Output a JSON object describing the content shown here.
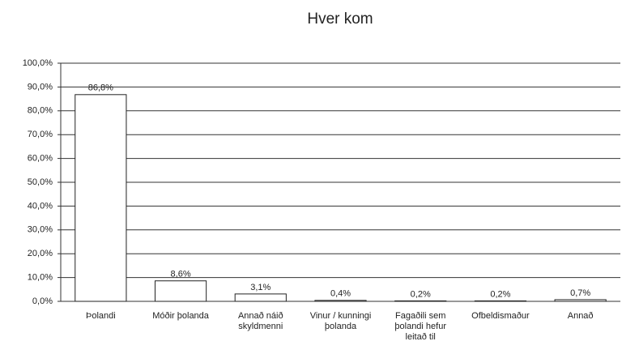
{
  "chart_data": {
    "type": "bar",
    "title": "Hver kom",
    "categories": [
      "Þolandi",
      "Móðir þolanda",
      "Annað náið skyldmenni",
      "Vinur / kunningi þolanda",
      "Fagaðili sem þolandi hefur leitað til",
      "Ofbeldismaður",
      "Annað"
    ],
    "values": [
      86.8,
      8.6,
      3.1,
      0.4,
      0.2,
      0.2,
      0.7
    ],
    "value_labels": [
      "86,8%",
      "8,6%",
      "3,1%",
      "0,4%",
      "0,2%",
      "0,2%",
      "0,7%"
    ],
    "color": "#ffffff",
    "ylim": [
      0,
      100
    ],
    "yticks": [
      {
        "value": 0,
        "label": "0,0%"
      },
      {
        "value": 10,
        "label": "10,0%"
      },
      {
        "value": 20,
        "label": "20,0%"
      },
      {
        "value": 30,
        "label": "30,0%"
      },
      {
        "value": 40,
        "label": "40,0%"
      },
      {
        "value": 50,
        "label": "50,0%"
      },
      {
        "value": 60,
        "label": "60,0%"
      },
      {
        "value": 70,
        "label": "70,0%"
      },
      {
        "value": 80,
        "label": "80,0%"
      },
      {
        "value": 90,
        "label": "90,0%"
      },
      {
        "value": 100,
        "label": "100,0%"
      }
    ],
    "grid": true
  }
}
